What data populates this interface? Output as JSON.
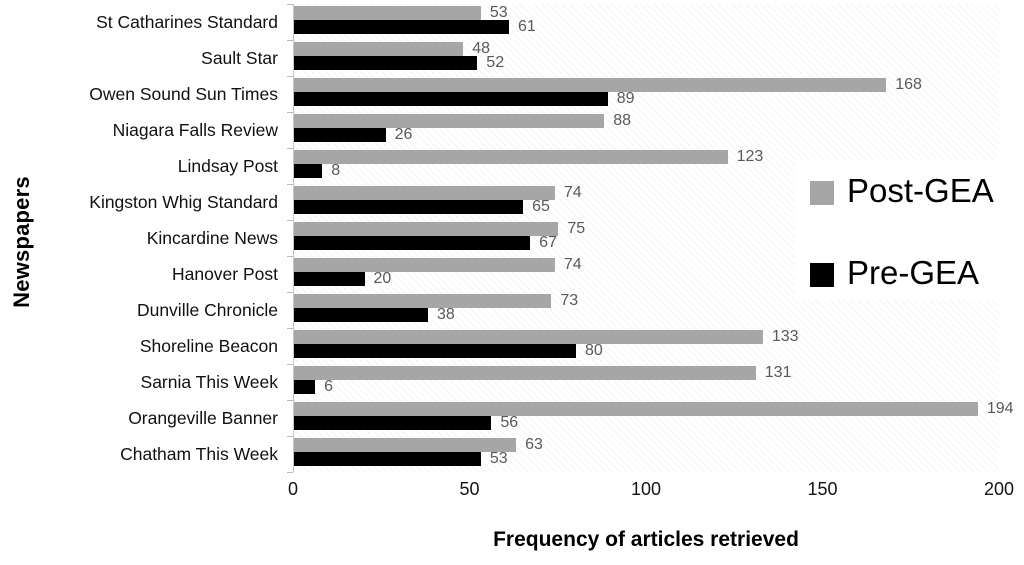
{
  "chart_data": {
    "type": "bar",
    "orientation": "horizontal",
    "title": "",
    "xlabel": "Frequency of articles retrieved",
    "ylabel": "Newspapers",
    "xlim": [
      0,
      200
    ],
    "xticks": [
      0,
      50,
      100,
      150,
      200
    ],
    "grid": false,
    "legend_position": "right",
    "plot_background": "diagonal-hatch",
    "categories": [
      "St Catharines Standard",
      "Sault Star",
      "Owen Sound Sun Times",
      "Niagara Falls Review",
      "Lindsay Post",
      "Kingston Whig Standard",
      "Kincardine News",
      "Hanover Post",
      "Dunville Chronicle",
      "Shoreline Beacon",
      "Sarnia This Week",
      "Orangeville Banner",
      "Chatham This Week"
    ],
    "series": [
      {
        "name": "Post-GEA",
        "color": "#a6a6a6",
        "values": [
          53,
          48,
          168,
          88,
          123,
          74,
          75,
          74,
          73,
          133,
          131,
          194,
          63
        ]
      },
      {
        "name": "Pre-GEA",
        "color": "#000000",
        "values": [
          61,
          52,
          89,
          26,
          8,
          65,
          67,
          20,
          38,
          80,
          6,
          56,
          53
        ]
      }
    ]
  },
  "legend": {
    "items": [
      {
        "label": "Post-GEA",
        "color": "#a6a6a6"
      },
      {
        "label": "Pre-GEA",
        "color": "#000000"
      }
    ]
  },
  "colors": {
    "value_label": "#595959",
    "axis_line": "#c6c6c6",
    "tick_text": "#141414"
  }
}
